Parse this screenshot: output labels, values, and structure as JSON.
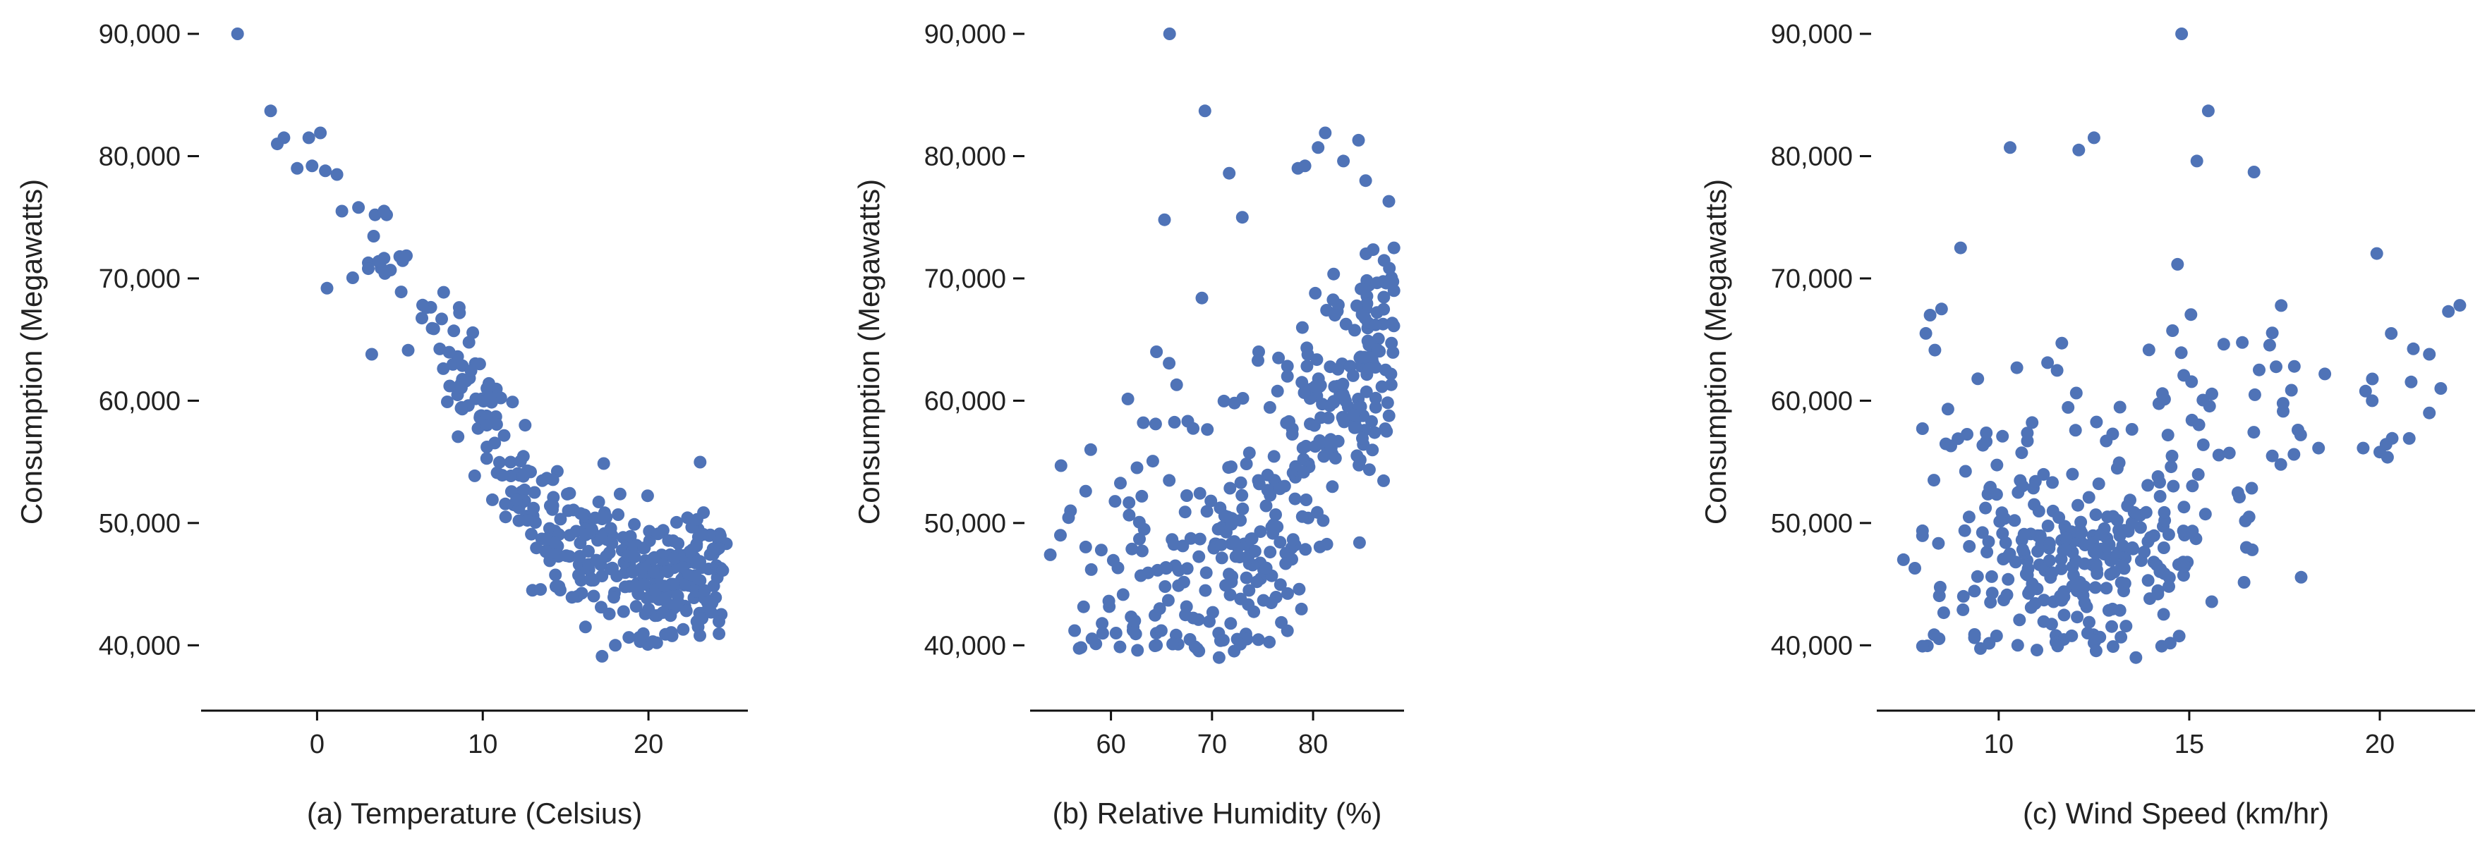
{
  "figure": {
    "marker_color": "#4f73b7",
    "background": "#ffffff"
  },
  "chart_data": [
    {
      "type": "scatter",
      "title": "",
      "xlabel": "(a) Temperature (Celsius)",
      "ylabel": "Consumption (Megawatts)",
      "xlim": [
        -7,
        26
      ],
      "ylim": [
        38000,
        90000
      ],
      "xticks": [
        0,
        10,
        20
      ],
      "yticks": [
        40000,
        50000,
        60000,
        70000,
        80000,
        90000
      ],
      "ytick_labels": [
        "40,000",
        "50,000",
        "60,000",
        "70,000",
        "80,000",
        "90,000"
      ],
      "grid": false,
      "anchor_points": [
        [
          -4.8,
          90000
        ],
        [
          -2.8,
          83700
        ],
        [
          -2.4,
          81000
        ],
        [
          -2,
          81500
        ],
        [
          -0.5,
          81500
        ],
        [
          0.2,
          81900
        ],
        [
          -1.2,
          79000
        ],
        [
          -0.3,
          79200
        ],
        [
          0.5,
          78800
        ],
        [
          1.2,
          78500
        ],
        [
          0.6,
          69200
        ],
        [
          1.5,
          75500
        ],
        [
          2.5,
          75800
        ],
        [
          3.3,
          63800
        ],
        [
          3.5,
          75200
        ],
        [
          4.2,
          75200
        ],
        [
          13,
          44500
        ],
        [
          16.2,
          41500
        ],
        [
          17.2,
          39100
        ],
        [
          18,
          40000
        ],
        [
          19.5,
          40300
        ],
        [
          20.5,
          40200
        ],
        [
          21.5,
          43000
        ],
        [
          22.2,
          43200
        ],
        [
          23,
          41500
        ],
        [
          24.7,
          48300
        ],
        [
          23,
          49500
        ]
      ],
      "trend": [
        [
          1.5,
          74000
        ],
        [
          3,
          72000
        ],
        [
          5,
          68500
        ],
        [
          7,
          65500
        ],
        [
          9,
          61500
        ],
        [
          10,
          59500
        ],
        [
          11.5,
          55000
        ],
        [
          13,
          51000
        ],
        [
          15,
          48000
        ],
        [
          17,
          46800
        ],
        [
          19,
          46300
        ],
        [
          21,
          46000
        ],
        [
          23,
          46000
        ],
        [
          24.5,
          46000
        ]
      ],
      "cloud": {
        "n": 360,
        "x_range": [
          1.5,
          24.5
        ],
        "x_mode": "skew-high",
        "spread": 2600,
        "seed": 11
      }
    },
    {
      "type": "scatter",
      "title": "",
      "xlabel": "(b) Relative Humidity (%)",
      "ylabel": "Consumption (Megawatts)",
      "xlim": [
        52,
        89
      ],
      "ylim": [
        38000,
        90000
      ],
      "xticks": [
        60,
        70,
        80
      ],
      "yticks": [
        40000,
        50000,
        60000,
        70000,
        80000,
        90000
      ],
      "ytick_labels": [
        "40,000",
        "50,000",
        "60,000",
        "70,000",
        "80,000",
        "90,000"
      ],
      "grid": false,
      "anchor_points": [
        [
          65.8,
          90000
        ],
        [
          69.3,
          83700
        ],
        [
          71.7,
          78600
        ],
        [
          65.3,
          74800
        ],
        [
          73,
          75000
        ],
        [
          78.5,
          79000
        ],
        [
          79.2,
          79200
        ],
        [
          80.5,
          80700
        ],
        [
          81.2,
          81900
        ],
        [
          83,
          79600
        ],
        [
          84.5,
          81300
        ],
        [
          85.2,
          78000
        ],
        [
          54,
          47400
        ],
        [
          55,
          49000
        ],
        [
          56,
          51000
        ],
        [
          58,
          56000
        ],
        [
          57.5,
          52600
        ],
        [
          60.5,
          41000
        ],
        [
          62.2,
          41500
        ],
        [
          64.5,
          40000
        ],
        [
          70.7,
          39000
        ],
        [
          72.5,
          40500
        ],
        [
          63.2,
          58200
        ],
        [
          64.5,
          64000
        ],
        [
          66.5,
          61300
        ],
        [
          69,
          68400
        ],
        [
          88,
          69000
        ],
        [
          87.5,
          76300
        ],
        [
          88,
          72500
        ]
      ],
      "trend": [
        [
          53,
          47000
        ],
        [
          60,
          46000
        ],
        [
          65,
          46000
        ],
        [
          70,
          46200
        ],
        [
          74,
          48000
        ],
        [
          77,
          51500
        ],
        [
          80,
          56500
        ],
        [
          83,
          61000
        ],
        [
          86,
          64000
        ],
        [
          88,
          65000
        ]
      ],
      "cloud": {
        "n": 360,
        "x_range": [
          54,
          88
        ],
        "x_mode": "skew-high",
        "spread": 5200,
        "seed": 23
      }
    },
    {
      "type": "scatter",
      "title": "",
      "xlabel": "(c) Wind Speed (km/hr)",
      "ylabel": "Consumption (Megawatts)",
      "xlim": [
        6.8,
        22.5
      ],
      "ylim": [
        38000,
        90000
      ],
      "xticks": [
        10,
        15,
        20
      ],
      "yticks": [
        40000,
        50000,
        60000,
        70000,
        80000,
        90000
      ],
      "ytick_labels": [
        "40,000",
        "50,000",
        "60,000",
        "70,000",
        "80,000",
        "90,000"
      ],
      "grid": false,
      "anchor_points": [
        [
          14.8,
          90000
        ],
        [
          15.5,
          83700
        ],
        [
          15.2,
          79600
        ],
        [
          12.5,
          81500
        ],
        [
          12.1,
          80500
        ],
        [
          10.3,
          80700
        ],
        [
          16.7,
          78700
        ],
        [
          22.1,
          67800
        ],
        [
          21.8,
          67300
        ],
        [
          21.3,
          63800
        ],
        [
          21.3,
          59000
        ],
        [
          21.6,
          61000
        ],
        [
          20.3,
          65500
        ],
        [
          19.8,
          60000
        ],
        [
          20,
          55800
        ],
        [
          7.5,
          47000
        ],
        [
          7.8,
          46300
        ],
        [
          8.3,
          53500
        ],
        [
          13.6,
          39000
        ],
        [
          12.5,
          40200
        ],
        [
          11.5,
          40800
        ],
        [
          10.5,
          40000
        ],
        [
          8.5,
          67500
        ],
        [
          8.2,
          67000
        ],
        [
          9,
          72500
        ],
        [
          16.5,
          48000
        ]
      ],
      "trend": [
        [
          8,
          50000
        ],
        [
          10,
          50500
        ],
        [
          11.5,
          49000
        ],
        [
          12.5,
          48500
        ],
        [
          13.5,
          50000
        ],
        [
          15,
          55000
        ],
        [
          17,
          58000
        ],
        [
          19,
          60000
        ],
        [
          21,
          61000
        ]
      ],
      "cloud": {
        "n": 340,
        "x_range": [
          8,
          21
        ],
        "x_mode": "peak-12",
        "spread": 7500,
        "seed": 37
      }
    }
  ]
}
